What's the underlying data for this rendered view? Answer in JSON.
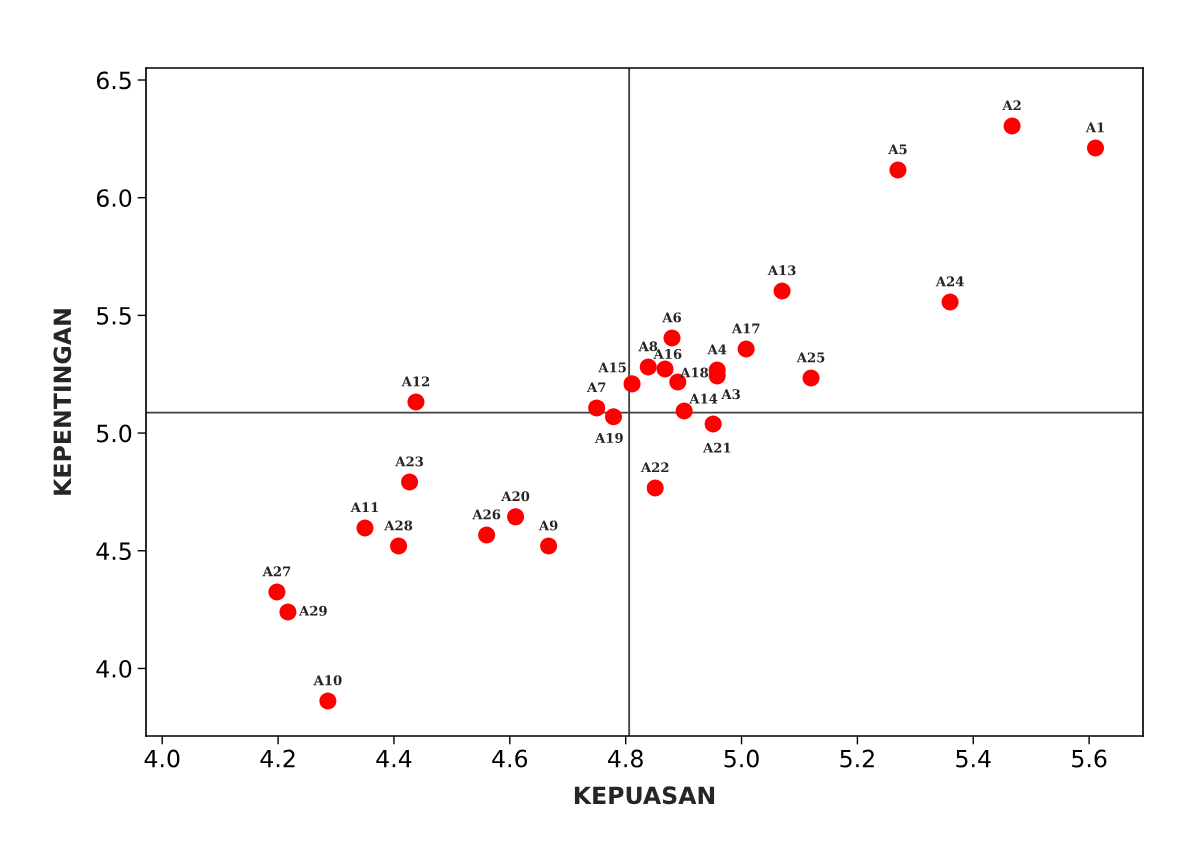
{
  "chart_data": {
    "type": "scatter",
    "xlabel": "KEPUASAN",
    "ylabel": "KEPENTINGAN",
    "x": [
      5.611,
      5.467,
      4.958,
      4.958,
      5.27,
      4.88,
      4.75,
      4.839,
      4.667,
      4.286,
      4.35,
      4.438,
      5.07,
      4.901,
      4.811,
      4.868,
      5.008,
      4.89,
      4.779,
      4.61,
      4.951,
      4.851,
      4.427,
      5.36,
      5.12,
      4.56,
      4.198,
      4.408,
      4.217
    ],
    "series": [
      {
        "color": "#ff0000",
        "values": [
          6.211,
          6.305,
          5.243,
          5.268,
          6.118,
          5.404,
          5.107,
          5.281,
          4.52,
          3.862,
          4.597,
          5.132,
          5.604,
          5.094,
          5.209,
          5.272,
          5.357,
          5.217,
          5.069,
          4.644,
          5.039,
          4.767,
          4.792,
          5.557,
          5.234,
          4.567,
          4.325,
          4.52,
          4.24
        ]
      }
    ],
    "annotations": [
      {
        "text": "A1",
        "x": 5.611,
        "y": 6.211
      },
      {
        "text": "A2",
        "x": 5.467,
        "y": 6.305
      },
      {
        "text": "A3",
        "x": 4.958,
        "y": 5.243
      },
      {
        "text": "A4",
        "x": 4.958,
        "y": 5.268
      },
      {
        "text": "A5",
        "x": 5.27,
        "y": 6.118
      },
      {
        "text": "A6",
        "x": 4.88,
        "y": 5.404
      },
      {
        "text": "A7",
        "x": 4.75,
        "y": 5.107
      },
      {
        "text": "A8",
        "x": 4.839,
        "y": 5.281
      },
      {
        "text": "A9",
        "x": 4.667,
        "y": 4.52
      },
      {
        "text": "A10",
        "x": 4.286,
        "y": 3.862
      },
      {
        "text": "A11",
        "x": 4.35,
        "y": 4.597
      },
      {
        "text": "A12",
        "x": 4.438,
        "y": 5.132
      },
      {
        "text": "A13",
        "x": 5.07,
        "y": 5.604
      },
      {
        "text": "A14",
        "x": 4.901,
        "y": 5.094
      },
      {
        "text": "A15",
        "x": 4.811,
        "y": 5.209
      },
      {
        "text": "A16",
        "x": 4.868,
        "y": 5.272
      },
      {
        "text": "A17",
        "x": 5.008,
        "y": 5.357
      },
      {
        "text": "A18",
        "x": 4.89,
        "y": 5.217
      },
      {
        "text": "A19",
        "x": 4.779,
        "y": 5.069
      },
      {
        "text": "A20",
        "x": 4.61,
        "y": 4.644
      },
      {
        "text": "A21",
        "x": 4.951,
        "y": 5.039
      },
      {
        "text": "A22",
        "x": 4.851,
        "y": 4.767
      },
      {
        "text": "A23",
        "x": 4.427,
        "y": 4.792
      },
      {
        "text": "A24",
        "x": 5.36,
        "y": 5.557
      },
      {
        "text": "A25",
        "x": 5.12,
        "y": 5.234
      },
      {
        "text": "A26",
        "x": 4.56,
        "y": 4.567
      },
      {
        "text": "A27",
        "x": 4.198,
        "y": 4.325
      },
      {
        "text": "A28",
        "x": 4.408,
        "y": 4.52
      },
      {
        "text": "A29",
        "x": 4.217,
        "y": 4.24
      }
    ],
    "ref_lines": [
      {
        "axis": "x",
        "value": 4.806,
        "color": "#404040"
      },
      {
        "axis": "y",
        "value": 5.087,
        "color": "#404040"
      }
    ],
    "xlim": [
      3.972,
      5.693
    ],
    "ylim": [
      3.713,
      6.551
    ],
    "xticks": [
      {
        "value": 4.0,
        "label": "4.0"
      },
      4.2,
      4.4,
      4.6,
      4.8,
      {
        "value": 5.0,
        "label": "5.0"
      },
      5.2,
      5.4,
      5.6
    ],
    "yticks": [
      {
        "value": 4.0,
        "label": "4.0"
      },
      4.5,
      {
        "value": 5.0,
        "label": "5.0"
      },
      5.5,
      {
        "value": 6.0,
        "label": "6.0"
      },
      6.5
    ],
    "marker": "circle",
    "grid": false,
    "legend": false
  }
}
